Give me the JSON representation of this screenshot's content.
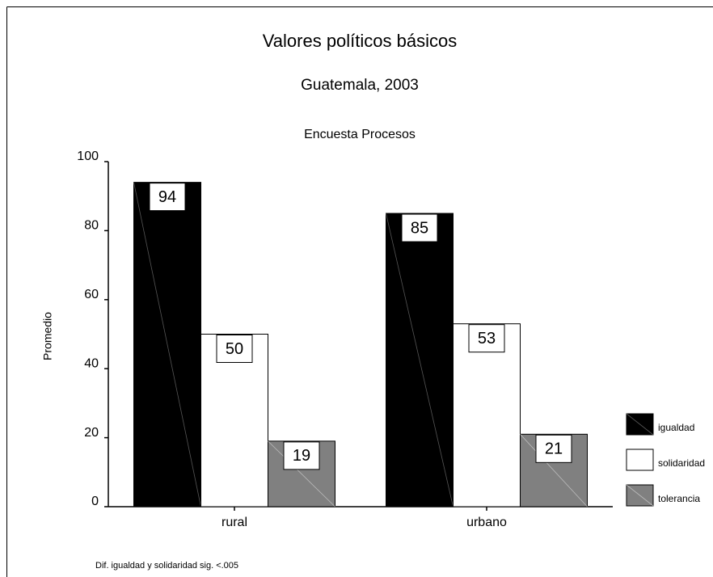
{
  "chart_data": {
    "type": "bar",
    "title": "Valores políticos básicos",
    "subtitle": "Guatemala, 2003",
    "annotation": "Encuesta Procesos",
    "ylabel": "Promedio",
    "footnote": "Dif. igualdad y solidaridad sig. <.005",
    "categories": [
      "rural",
      "urbano"
    ],
    "series": [
      {
        "name": "igualdad",
        "color": "#000000",
        "values": [
          94,
          85
        ]
      },
      {
        "name": "solidaridad",
        "color": "#ffffff",
        "values": [
          50,
          53
        ]
      },
      {
        "name": "tolerancia",
        "color": "#808080",
        "values": [
          19,
          21
        ]
      }
    ],
    "ylim": [
      0,
      100
    ],
    "yticks": [
      0,
      20,
      40,
      60,
      80,
      100
    ],
    "legend": "right"
  }
}
